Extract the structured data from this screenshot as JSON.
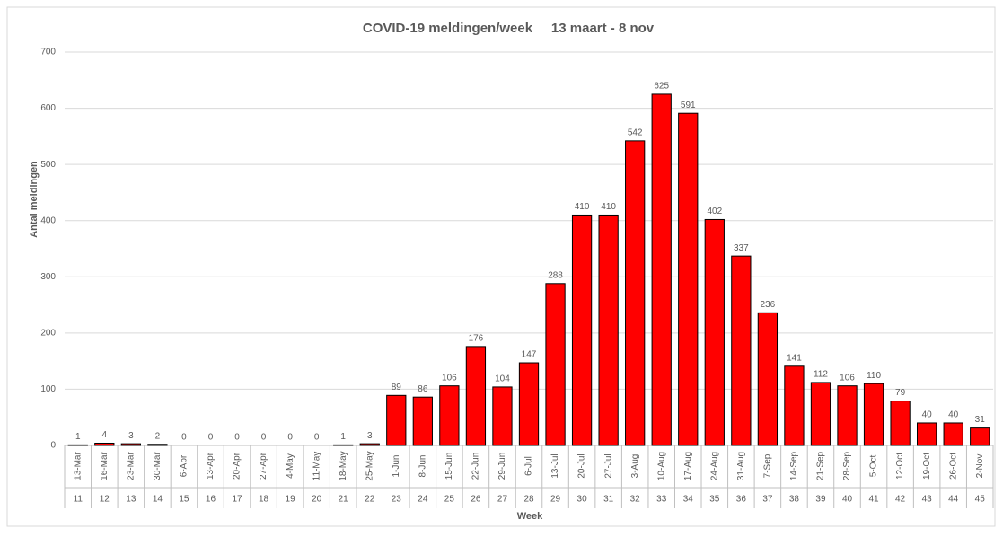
{
  "chart_data": {
    "type": "bar",
    "title": "COVID-19 meldingen/week     13 maart - 8 nov",
    "y_label": "Antal meldingen",
    "x_label": "Week",
    "categories": [
      "13-Mar",
      "16-Mar",
      "23-Mar",
      "30-Mar",
      "6-Apr",
      "13-Apr",
      "20-Apr",
      "27-Apr",
      "4-May",
      "11-May",
      "18-May",
      "25-May",
      "1-Jun",
      "8-Jun",
      "15-Jun",
      "22-Jun",
      "29-Jun",
      "6-Jul",
      "13-Jul",
      "20-Jul",
      "27-Jul",
      "3-Aug",
      "10-Aug",
      "17-Aug",
      "24-Aug",
      "31-Aug",
      "7-Sep",
      "14-Sep",
      "21-Sep",
      "28-Sep",
      "5-Oct",
      "12-Oct",
      "19-Oct",
      "26-Oct",
      "2-Nov"
    ],
    "category_groups": [
      "11",
      "12",
      "13",
      "14",
      "15",
      "16",
      "17",
      "18",
      "19",
      "20",
      "21",
      "22",
      "23",
      "24",
      "25",
      "26",
      "27",
      "28",
      "29",
      "30",
      "31",
      "32",
      "33",
      "34",
      "35",
      "36",
      "37",
      "38",
      "39",
      "40",
      "41",
      "42",
      "43",
      "44",
      "45"
    ],
    "values": [
      1,
      4,
      3,
      2,
      0,
      0,
      0,
      0,
      0,
      0,
      1,
      3,
      89,
      86,
      106,
      176,
      104,
      147,
      288,
      410,
      410,
      542,
      625,
      591,
      402,
      337,
      236,
      141,
      112,
      106,
      110,
      79,
      40,
      40,
      31
    ],
    "color": "#ff0000",
    "ylim": [
      0,
      700
    ],
    "yticks": [
      0,
      100,
      200,
      300,
      400,
      500,
      600,
      700
    ],
    "grid": true
  }
}
